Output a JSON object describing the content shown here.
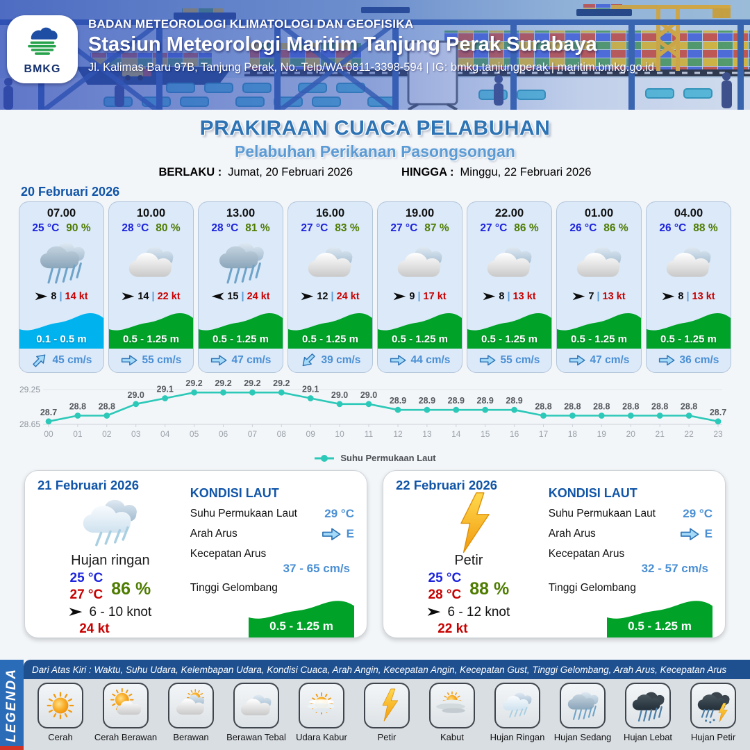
{
  "header": {
    "logo_text": "BMKG",
    "agency": "BADAN METEOROLOGI KLIMATOLOGI DAN GEOFISIKA",
    "station": "Stasiun Meteorologi Maritim Tanjung Perak Surabaya",
    "address": "Jl. Kalimas Baru 97B, Tanjung Perak, No. Telp/WA 0811-3398-594 | IG: bmkg.tanjungperak | maritim.bmkg.go.id"
  },
  "title": {
    "main": "PRAKIRAAN CUACA PELABUHAN",
    "subtitle": "Pelabuhan Perikanan Pasongsongan",
    "valid_from_label": "BERLAKU :",
    "valid_from": "Jumat, 20 Februari 2026",
    "valid_to_label": "HINGGA :",
    "valid_to": "Minggu, 22 Februari 2026"
  },
  "forecast_day_label": "20 Februari 2026",
  "labels": {
    "divider": "|"
  },
  "colors": {
    "accent": "#2e74b5",
    "subtitle": "#5b9bd5",
    "day_label": "#1155a8",
    "temp": "#1d24dc",
    "temp_max": "#c80000",
    "humidity": "#4e7c00",
    "gust": "#c80000",
    "wave_green": "#00a228",
    "wave_cyan": "#00b3ef",
    "current": "#4a8fd4",
    "chart_line": "#2cc8b8"
  },
  "cards": [
    {
      "time": "07.00",
      "temp": "25 °C",
      "hum": "90 %",
      "icon": "hujan-sedang",
      "wind_dir": "E",
      "wind": "8",
      "gust": "14 kt",
      "wave": "0.1 - 0.5 m",
      "wave_color": "#00b3ef",
      "cur_dir": "NE",
      "current": "45 cm/s"
    },
    {
      "time": "10.00",
      "temp": "28 °C",
      "hum": "80 %",
      "icon": "berawan-tebal",
      "wind_dir": "E",
      "wind": "14",
      "gust": "22 kt",
      "wave": "0.5 - 1.25 m",
      "wave_color": "#00a228",
      "cur_dir": "E",
      "current": "55 cm/s"
    },
    {
      "time": "13.00",
      "temp": "28 °C",
      "hum": "81 %",
      "icon": "hujan-sedang",
      "wind_dir": "W",
      "wind": "15",
      "gust": "24 kt",
      "wave": "0.5 - 1.25 m",
      "wave_color": "#00a228",
      "cur_dir": "E",
      "current": "47 cm/s"
    },
    {
      "time": "16.00",
      "temp": "27 °C",
      "hum": "83 %",
      "icon": "berawan-tebal",
      "wind_dir": "E",
      "wind": "12",
      "gust": "24 kt",
      "wave": "0.5 - 1.25 m",
      "wave_color": "#00a228",
      "cur_dir": "SW",
      "current": "39 cm/s"
    },
    {
      "time": "19.00",
      "temp": "27 °C",
      "hum": "87 %",
      "icon": "berawan-tebal",
      "wind_dir": "E",
      "wind": "9",
      "gust": "17 kt",
      "wave": "0.5 - 1.25 m",
      "wave_color": "#00a228",
      "cur_dir": "E",
      "current": "44 cm/s"
    },
    {
      "time": "22.00",
      "temp": "27 °C",
      "hum": "86 %",
      "icon": "berawan-tebal",
      "wind_dir": "E",
      "wind": "8",
      "gust": "13 kt",
      "wave": "0.5 - 1.25 m",
      "wave_color": "#00a228",
      "cur_dir": "E",
      "current": "55 cm/s"
    },
    {
      "time": "01.00",
      "temp": "26 °C",
      "hum": "86 %",
      "icon": "berawan-tebal",
      "wind_dir": "E",
      "wind": "7",
      "gust": "13 kt",
      "wave": "0.5 - 1.25 m",
      "wave_color": "#00a228",
      "cur_dir": "E",
      "current": "47 cm/s"
    },
    {
      "time": "04.00",
      "temp": "26 °C",
      "hum": "88 %",
      "icon": "berawan-tebal",
      "wind_dir": "E",
      "wind": "8",
      "gust": "13 kt",
      "wave": "0.5 - 1.25 m",
      "wave_color": "#00a228",
      "cur_dir": "E",
      "current": "36 cm/s"
    }
  ],
  "chart_data": {
    "type": "line",
    "x": [
      "00",
      "01",
      "02",
      "03",
      "04",
      "05",
      "06",
      "07",
      "08",
      "09",
      "10",
      "11",
      "12",
      "13",
      "14",
      "15",
      "16",
      "17",
      "18",
      "19",
      "20",
      "21",
      "22",
      "23"
    ],
    "series": [
      {
        "name": "Suhu Permukaan Laut",
        "values": [
          28.7,
          28.8,
          28.8,
          29.0,
          29.1,
          29.2,
          29.2,
          29.2,
          29.2,
          29.1,
          29.0,
          29.0,
          28.9,
          28.9,
          28.9,
          28.9,
          28.9,
          28.8,
          28.8,
          28.8,
          28.8,
          28.8,
          28.8,
          28.7
        ]
      }
    ],
    "ylim": [
      28.65,
      29.25
    ],
    "yticks": [
      28.65,
      29.25
    ],
    "xlabel": "",
    "ylabel": "",
    "grid": true,
    "legend_position": "bottom",
    "line_color": "#2cc8b8"
  },
  "sea_labels": {
    "heading": "KONDISI LAUT",
    "sst": "Suhu Permukaan Laut",
    "dir": "Arah Arus",
    "speed": "Kecepatan Arus",
    "wave": "Tinggi Gelombang"
  },
  "day_cards": [
    {
      "date": "21 Februari 2026",
      "icon": "hujan-ringan",
      "condition": "Hujan ringan",
      "temp_min": "25 °C",
      "temp_max": "27 °C",
      "humidity": "86 %",
      "wind": "6  - 10 knot",
      "gust": "24 kt",
      "sea": {
        "sst": "29 °C",
        "current_dir": "E",
        "current_speed": "37  - 65 cm/s",
        "wave": "0.5 - 1.25 m",
        "wave_color": "#00a228"
      }
    },
    {
      "date": "22 Februari 2026",
      "icon": "petir",
      "condition": "Petir",
      "temp_min": "25 °C",
      "temp_max": "28 °C",
      "humidity": "88 %",
      "wind": "6  - 12 knot",
      "gust": "22 kt",
      "sea": {
        "sst": "29 °C",
        "current_dir": "E",
        "current_speed": "32 - 57 cm/s",
        "wave": "0.5 - 1.25 m",
        "wave_color": "#00a228"
      }
    }
  ],
  "legend": {
    "title": "LEGENDA",
    "note": "Dari Atas Kiri : Waktu, Suhu Udara, Kelembapan Udara, Kondisi Cuaca, Arah Angin, Kecepatan Angin, Kecepatan Gust, Tinggi Gelombang, Arah Arus, Kecepatan Arus",
    "items": [
      {
        "label": "Cerah",
        "icon": "cerah"
      },
      {
        "label": "Cerah Berawan",
        "icon": "cerah-berawan"
      },
      {
        "label": "Berawan",
        "icon": "berawan"
      },
      {
        "label": "Berawan Tebal",
        "icon": "berawan-tebal"
      },
      {
        "label": "Udara Kabur",
        "icon": "udara-kabur"
      },
      {
        "label": "Petir",
        "icon": "petir"
      },
      {
        "label": "Kabut",
        "icon": "kabut"
      },
      {
        "label": "Hujan Ringan",
        "icon": "hujan-ringan"
      },
      {
        "label": "Hujan Sedang",
        "icon": "hujan-sedang"
      },
      {
        "label": "Hujan Lebat",
        "icon": "hujan-lebat"
      },
      {
        "label": "Hujan Petir",
        "icon": "hujan-petir"
      }
    ]
  }
}
